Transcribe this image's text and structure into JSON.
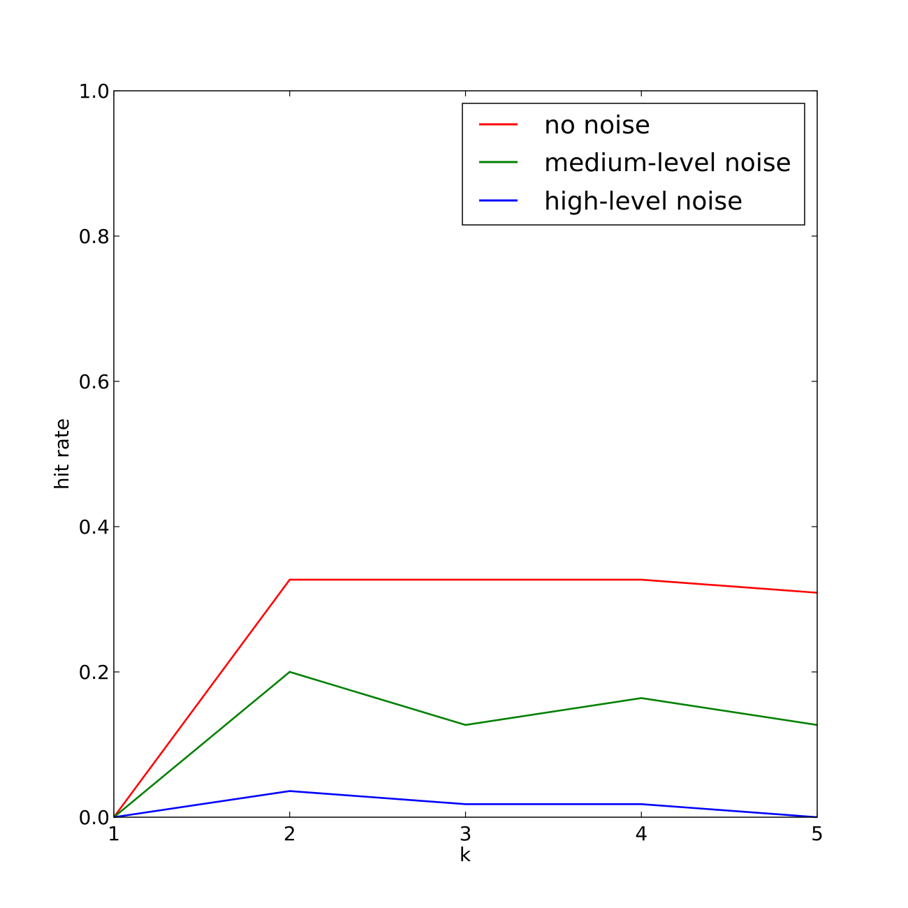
{
  "chart_data": {
    "type": "line",
    "title": "",
    "xlabel": "k",
    "ylabel": "hit rate",
    "x": [
      1,
      2,
      3,
      4,
      5
    ],
    "xlim": [
      1,
      5
    ],
    "ylim": [
      0.0,
      1.0
    ],
    "x_ticks": [
      "1",
      "2",
      "3",
      "4",
      "5"
    ],
    "y_ticks": [
      "0.0",
      "0.2",
      "0.4",
      "0.6",
      "0.8",
      "1.0"
    ],
    "grid": false,
    "legend_position": "top-right",
    "series": [
      {
        "name": "no noise",
        "color": "#ff0000",
        "values": [
          0.0,
          0.327,
          0.327,
          0.327,
          0.309
        ]
      },
      {
        "name": "medium-level noise",
        "color": "#008000",
        "values": [
          0.0,
          0.2,
          0.127,
          0.164,
          0.127
        ]
      },
      {
        "name": "high-level noise",
        "color": "#0000ff",
        "values": [
          0.0,
          0.036,
          0.018,
          0.018,
          0.0
        ]
      }
    ]
  }
}
